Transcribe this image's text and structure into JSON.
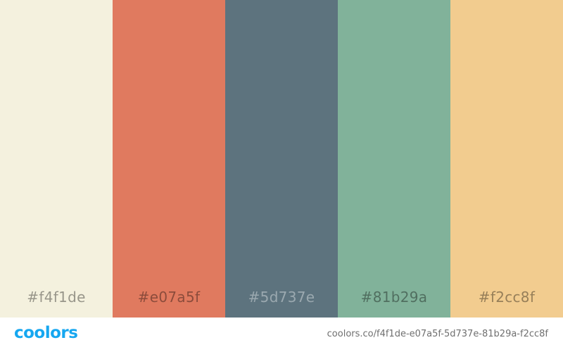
{
  "palette": {
    "swatches": [
      {
        "hex": "#f4f1de",
        "label": "#f4f1de",
        "tone": "light"
      },
      {
        "hex": "#e07a5f",
        "label": "#e07a5f",
        "tone": "light"
      },
      {
        "hex": "#5d737e",
        "label": "#5d737e",
        "tone": "dark"
      },
      {
        "hex": "#81b29a",
        "label": "#81b29a",
        "tone": "light"
      },
      {
        "hex": "#f2cc8f",
        "label": "#f2cc8f",
        "tone": "light"
      }
    ]
  },
  "footer": {
    "logo_text": "coolors",
    "logo_color": "#16a7f0",
    "url": "coolors.co/f4f1de-e07a5f-5d737e-81b29a-f2cc8f"
  }
}
